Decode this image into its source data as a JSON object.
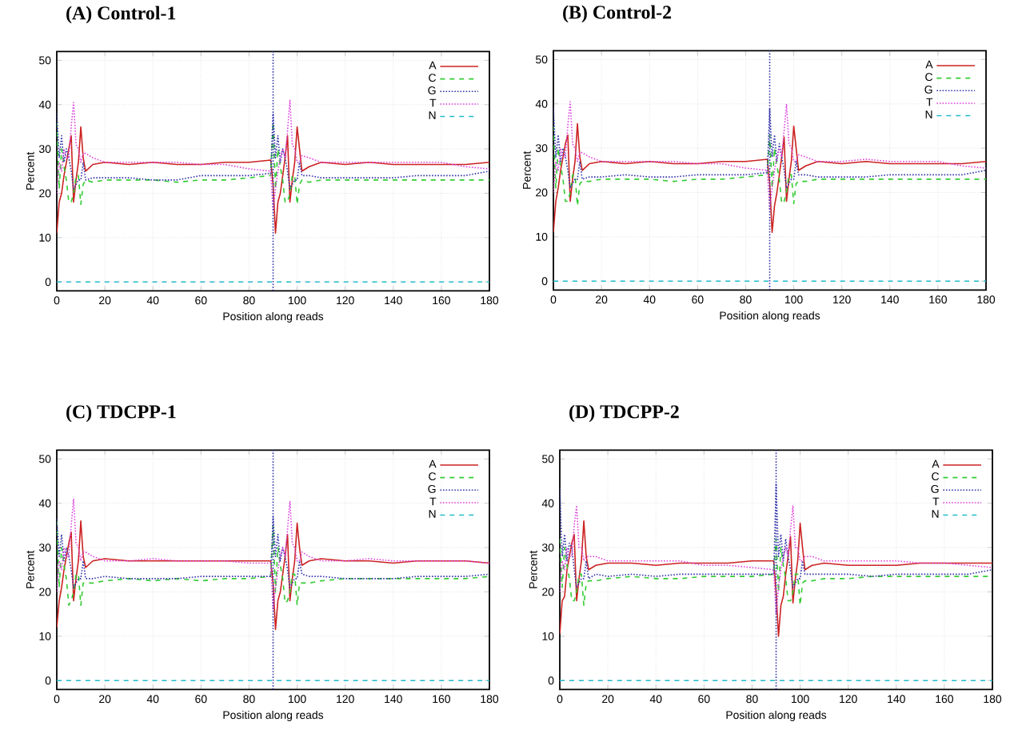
{
  "chart_data": [
    {
      "type": "line",
      "title": "(A) Control-1",
      "xlabel": "Position along reads",
      "ylabel": "Percent",
      "xlim": [
        0,
        180
      ],
      "ylim": [
        -2,
        52
      ],
      "xticks": [
        0,
        20,
        40,
        60,
        80,
        100,
        120,
        140,
        160,
        180
      ],
      "yticks": [
        0,
        10,
        20,
        30,
        40,
        50
      ],
      "grid": true,
      "legend": "top right",
      "x": [
        0,
        1,
        2,
        3,
        4,
        5,
        6,
        7,
        8,
        9,
        10,
        11,
        12,
        15,
        20,
        30,
        40,
        50,
        60,
        70,
        80,
        89,
        90,
        91,
        92,
        93,
        94,
        95,
        96,
        97,
        98,
        99,
        100,
        101,
        102,
        105,
        110,
        120,
        130,
        140,
        150,
        160,
        170,
        180
      ],
      "ref_lines": [
        {
          "axis": "x",
          "value": 90,
          "color": "#3333aa",
          "line_style": "dotted"
        }
      ],
      "series": [
        {
          "name": "A",
          "color": "#cc2222",
          "line_style": "solid",
          "values": [
            11,
            18,
            20,
            24,
            27,
            30,
            33,
            18,
            23,
            27,
            35,
            28,
            25,
            26.5,
            27,
            26.5,
            27,
            26.5,
            26.5,
            27,
            27,
            27.5,
            22,
            11,
            18,
            20,
            24,
            28,
            33,
            18,
            23,
            27,
            35,
            30,
            25,
            26,
            27,
            26.5,
            27,
            26.5,
            26.5,
            26.5,
            26.5,
            27
          ]
        },
        {
          "name": "C",
          "color": "#33cc33",
          "line_style": "dashed",
          "values": [
            36,
            21,
            30,
            26,
            23,
            18,
            18,
            20,
            24,
            24,
            17.5,
            22,
            23,
            22.5,
            23,
            23,
            23,
            22.5,
            23,
            23,
            23.5,
            24,
            36,
            21,
            30,
            26,
            23,
            18,
            18,
            20,
            24,
            24,
            17.5,
            22,
            23,
            22.5,
            23,
            23,
            23,
            23,
            23,
            23,
            23,
            23
          ]
        },
        {
          "name": "G",
          "color": "#3333aa",
          "line_style": "dotted",
          "values": [
            38,
            28,
            33,
            27,
            30,
            28,
            25,
            21,
            22,
            23,
            23,
            27,
            23,
            23.5,
            23.5,
            23.5,
            23,
            23,
            24,
            24,
            24,
            24.5,
            38,
            28,
            33,
            27,
            30,
            28,
            25,
            21,
            22,
            23,
            23,
            27,
            24,
            24,
            23.5,
            23.5,
            23.5,
            23.5,
            24,
            24,
            24,
            25
          ]
        },
        {
          "name": "T",
          "color": "#dd44dd",
          "line_style": "dotted",
          "values": [
            20,
            27,
            25,
            30,
            28,
            28,
            35,
            40.5,
            31,
            30,
            27,
            29,
            29,
            28,
            27,
            27,
            27,
            27,
            26.5,
            26.5,
            25.5,
            25,
            16,
            21,
            25,
            28,
            30,
            28,
            34,
            41,
            31,
            30,
            27,
            27,
            28.5,
            28,
            27,
            27,
            27,
            27,
            27,
            27,
            26,
            25.5
          ]
        },
        {
          "name": "N",
          "color": "#22bbcc",
          "line_style": "dashed",
          "values": [
            0,
            0,
            0,
            0,
            0,
            0,
            0,
            0,
            0,
            0,
            0,
            0,
            0,
            0,
            0,
            0,
            0,
            0,
            0,
            0,
            0,
            0,
            0,
            0,
            0,
            0,
            0,
            0,
            0,
            0,
            0,
            0,
            0,
            0,
            0,
            0,
            0,
            0,
            0,
            0,
            0,
            0,
            0,
            0
          ]
        }
      ]
    },
    {
      "type": "line",
      "title": "(B) Control-2",
      "xlabel": "Position along reads",
      "ylabel": "Percent",
      "xlim": [
        0,
        180
      ],
      "ylim": [
        -2,
        52
      ],
      "xticks": [
        0,
        20,
        40,
        60,
        80,
        100,
        120,
        140,
        160,
        180
      ],
      "yticks": [
        0,
        10,
        20,
        30,
        40,
        50
      ],
      "grid": true,
      "legend": "top right",
      "x": [
        0,
        1,
        2,
        3,
        4,
        5,
        6,
        7,
        8,
        9,
        10,
        11,
        12,
        15,
        20,
        30,
        40,
        50,
        60,
        70,
        80,
        89,
        90,
        91,
        92,
        93,
        94,
        95,
        96,
        97,
        98,
        99,
        100,
        101,
        102,
        105,
        110,
        120,
        130,
        140,
        150,
        160,
        170,
        180
      ],
      "ref_lines": [
        {
          "axis": "x",
          "value": 90,
          "color": "#3333aa",
          "line_style": "dotted"
        }
      ],
      "series": [
        {
          "name": "A",
          "color": "#cc2222",
          "line_style": "solid",
          "values": [
            11,
            18,
            21,
            25,
            28,
            31,
            33,
            18,
            23,
            27,
            35.5,
            28,
            25,
            26.5,
            27,
            26.5,
            27,
            26.5,
            26.5,
            27,
            27,
            27.5,
            22,
            11,
            17,
            20,
            24,
            28,
            32.5,
            18,
            23,
            27,
            35,
            30,
            25,
            26,
            27,
            26.5,
            27,
            26.5,
            26.5,
            26.5,
            26.5,
            27
          ]
        },
        {
          "name": "C",
          "color": "#33cc33",
          "line_style": "dashed",
          "values": [
            35,
            21,
            30,
            26,
            23,
            18,
            18,
            20,
            24,
            24,
            17,
            22,
            22.5,
            22.5,
            23,
            23,
            23,
            22.5,
            23,
            23,
            23.5,
            24,
            33,
            21,
            30,
            26,
            23,
            17.5,
            18,
            20,
            24,
            24,
            17.5,
            22,
            22.5,
            22.5,
            23,
            23,
            23,
            23,
            23,
            23,
            23,
            23
          ]
        },
        {
          "name": "G",
          "color": "#3333aa",
          "line_style": "dotted",
          "values": [
            39,
            28,
            33,
            27,
            30,
            28,
            25,
            21,
            22,
            23,
            23,
            27,
            23,
            23.5,
            23.5,
            24,
            23.5,
            23.5,
            24,
            24,
            24,
            24.5,
            39,
            28,
            33,
            27,
            31,
            28,
            25,
            21,
            22,
            23,
            23,
            27,
            24,
            24,
            23.5,
            23.5,
            23.5,
            24,
            24,
            24,
            24,
            25
          ]
        },
        {
          "name": "T",
          "color": "#dd44dd",
          "line_style": "dotted",
          "values": [
            20,
            27,
            25,
            30,
            28,
            28,
            35,
            40.5,
            31,
            30,
            27,
            29,
            29,
            28,
            27,
            27,
            27,
            27,
            26.5,
            26.5,
            25.5,
            25,
            16,
            21,
            25,
            28,
            30,
            28,
            34,
            40,
            31,
            30,
            27,
            27,
            28.5,
            28,
            27,
            27,
            27.5,
            27,
            27,
            27,
            26,
            25.5
          ]
        },
        {
          "name": "N",
          "color": "#22bbcc",
          "line_style": "dashed",
          "values": [
            0,
            0,
            0,
            0,
            0,
            0,
            0,
            0,
            0,
            0,
            0,
            0,
            0,
            0,
            0,
            0,
            0,
            0,
            0,
            0,
            0,
            0,
            0,
            0,
            0,
            0,
            0,
            0,
            0,
            0,
            0,
            0,
            0,
            0,
            0,
            0,
            0,
            0,
            0,
            0,
            0,
            0,
            0,
            0
          ]
        }
      ]
    },
    {
      "type": "line",
      "title": "(C) TDCPP-1",
      "xlabel": "Position along reads",
      "ylabel": "Percent",
      "xlim": [
        0,
        180
      ],
      "ylim": [
        -2,
        52
      ],
      "xticks": [
        0,
        20,
        40,
        60,
        80,
        100,
        120,
        140,
        160,
        180
      ],
      "yticks": [
        0,
        10,
        20,
        30,
        40,
        50
      ],
      "grid": true,
      "legend": "top right",
      "x": [
        0,
        1,
        2,
        3,
        4,
        5,
        6,
        7,
        8,
        9,
        10,
        11,
        12,
        15,
        20,
        30,
        40,
        50,
        60,
        70,
        80,
        89,
        90,
        91,
        92,
        93,
        94,
        95,
        96,
        97,
        98,
        99,
        100,
        101,
        102,
        105,
        110,
        120,
        130,
        140,
        150,
        160,
        170,
        180
      ],
      "ref_lines": [
        {
          "axis": "x",
          "value": 90,
          "color": "#3333aa",
          "line_style": "dotted"
        }
      ],
      "series": [
        {
          "name": "A",
          "color": "#cc2222",
          "line_style": "solid",
          "values": [
            12,
            18,
            21,
            25,
            28,
            31,
            33.5,
            18,
            23,
            27,
            36,
            28,
            25.5,
            27,
            27.5,
            27,
            27,
            27,
            27,
            27,
            27,
            27,
            22,
            11.5,
            18,
            20,
            24,
            28,
            33,
            18,
            23,
            27,
            35.5,
            30,
            26,
            27,
            27.5,
            27,
            27,
            26.5,
            27,
            27,
            27,
            26.5
          ]
        },
        {
          "name": "C",
          "color": "#33cc33",
          "line_style": "dashed",
          "values": [
            36,
            21,
            30,
            26,
            23,
            17,
            18,
            20,
            24,
            24,
            17,
            22,
            22,
            22,
            22.5,
            23,
            22.5,
            23,
            22.5,
            23,
            23,
            23.5,
            35,
            20,
            30,
            26,
            23,
            17.5,
            18,
            20,
            24,
            24,
            17,
            22,
            22,
            22,
            22.5,
            23,
            23,
            23,
            23,
            23,
            23,
            23.5
          ]
        },
        {
          "name": "G",
          "color": "#3333aa",
          "line_style": "dotted",
          "values": [
            36.5,
            28,
            33,
            27,
            30,
            28,
            25,
            21,
            22,
            23,
            23,
            27,
            23,
            23,
            23.5,
            23,
            23,
            23,
            23.5,
            23.5,
            23.5,
            23.5,
            37,
            28,
            33,
            27,
            30,
            28,
            25,
            21,
            22,
            23,
            23,
            27,
            24,
            23.5,
            23.5,
            23,
            23,
            23,
            23.5,
            23.5,
            23.5,
            24
          ]
        },
        {
          "name": "T",
          "color": "#dd44dd",
          "line_style": "dotted",
          "values": [
            20,
            27,
            25,
            30,
            28,
            28,
            35,
            41,
            31,
            30,
            27,
            29,
            29,
            28,
            27,
            27,
            27.5,
            27,
            27,
            27,
            26.5,
            26.5,
            16,
            21,
            25,
            28,
            30,
            28,
            34,
            40.5,
            31,
            30,
            27,
            27,
            29,
            28,
            27,
            27,
            27.5,
            27,
            27,
            27,
            27,
            26.5
          ]
        },
        {
          "name": "N",
          "color": "#22bbcc",
          "line_style": "dashed",
          "values": [
            0,
            0,
            0,
            0,
            0,
            0,
            0,
            0,
            0,
            0,
            0,
            0,
            0,
            0,
            0,
            0,
            0,
            0,
            0,
            0,
            0,
            0,
            0,
            0,
            0,
            0,
            0,
            0,
            0,
            0,
            0,
            0,
            0,
            0,
            0,
            0,
            0,
            0,
            0,
            0,
            0,
            0,
            0,
            0
          ]
        }
      ]
    },
    {
      "type": "line",
      "title": "(D) TDCPP-2",
      "xlabel": "Position along reads",
      "ylabel": "Percent",
      "xlim": [
        0,
        180
      ],
      "ylim": [
        -2,
        52
      ],
      "xticks": [
        0,
        20,
        40,
        60,
        80,
        100,
        120,
        140,
        160,
        180
      ],
      "yticks": [
        0,
        10,
        20,
        30,
        40,
        50
      ],
      "grid": true,
      "legend": "top right",
      "x": [
        0,
        1,
        2,
        3,
        4,
        5,
        6,
        7,
        8,
        9,
        10,
        11,
        12,
        15,
        20,
        30,
        40,
        50,
        60,
        70,
        80,
        89,
        90,
        91,
        92,
        93,
        94,
        95,
        96,
        97,
        98,
        99,
        100,
        101,
        102,
        105,
        110,
        120,
        130,
        140,
        150,
        160,
        170,
        180
      ],
      "ref_lines": [
        {
          "axis": "x",
          "value": 90,
          "color": "#3333aa",
          "line_style": "dotted"
        }
      ],
      "series": [
        {
          "name": "A",
          "color": "#cc2222",
          "line_style": "solid",
          "values": [
            10.5,
            18,
            19,
            25,
            28,
            31,
            33,
            18,
            23,
            27,
            36,
            28,
            25,
            26,
            26.5,
            26.5,
            26,
            26.5,
            26.5,
            26.5,
            27,
            27,
            20,
            10,
            17,
            19,
            24,
            28,
            32.5,
            17.5,
            23,
            27,
            35.5,
            30,
            25,
            26,
            26.5,
            26,
            26,
            26,
            26.5,
            26.5,
            26.5,
            26.5
          ]
        },
        {
          "name": "C",
          "color": "#33cc33",
          "line_style": "dashed",
          "values": [
            32,
            21,
            30,
            26,
            23,
            18,
            18,
            20,
            24,
            24,
            17,
            22,
            22.5,
            22.5,
            23,
            23.5,
            23,
            23,
            23.5,
            23.5,
            23.5,
            24,
            32,
            20,
            30,
            26,
            23,
            18,
            18,
            20,
            24,
            24,
            17,
            22,
            22.5,
            22.5,
            23,
            23,
            23.5,
            23.5,
            23.5,
            23.5,
            23.5,
            23.5
          ]
        },
        {
          "name": "G",
          "color": "#3333aa",
          "line_style": "dotted",
          "values": [
            43.5,
            28,
            33,
            27,
            31,
            30,
            25,
            21,
            22,
            23,
            23,
            27,
            23,
            24,
            23.5,
            24,
            23.5,
            24,
            24,
            24,
            24,
            24,
            44.5,
            28,
            33,
            27,
            32,
            28,
            25,
            21,
            22,
            23,
            23,
            27,
            24,
            24,
            24,
            24,
            23.5,
            24,
            24,
            24,
            24,
            25
          ]
        },
        {
          "name": "T",
          "color": "#dd44dd",
          "line_style": "dotted",
          "values": [
            20,
            27,
            25,
            30,
            28,
            28,
            35,
            39.5,
            30,
            30,
            27,
            28,
            28,
            28,
            27,
            27,
            27,
            27,
            26,
            26,
            25.5,
            25,
            15,
            21,
            25,
            28,
            30,
            28,
            34,
            39.5,
            30,
            30,
            27,
            27,
            28,
            28,
            27,
            27,
            27,
            27,
            26.5,
            26.5,
            26,
            25.5
          ]
        },
        {
          "name": "N",
          "color": "#22bbcc",
          "line_style": "dashed",
          "values": [
            0,
            0,
            0,
            0,
            0,
            0,
            0,
            0,
            0,
            0,
            0,
            0,
            0,
            0,
            0,
            0,
            0,
            0,
            0,
            0,
            0,
            0,
            0,
            0,
            0,
            0,
            0,
            0,
            0,
            0,
            0,
            0,
            0,
            0,
            0,
            0,
            0,
            0,
            0,
            0,
            0,
            0,
            0,
            0
          ]
        }
      ]
    }
  ]
}
